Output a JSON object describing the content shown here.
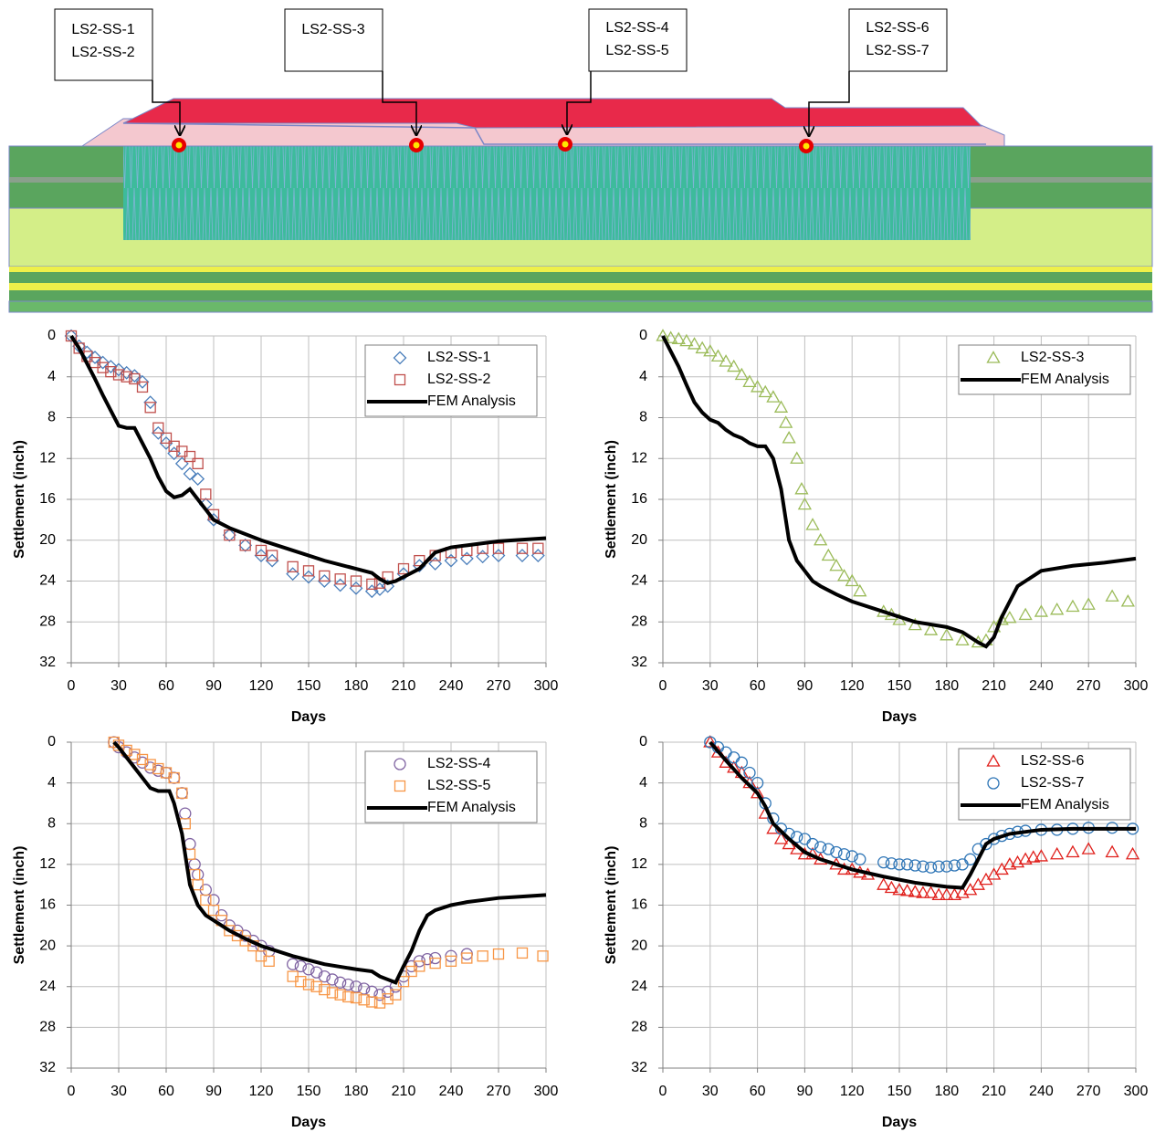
{
  "diagram": {
    "callouts": [
      {
        "lines": [
          "LS2-SS-1",
          "LS2-SS-2"
        ]
      },
      {
        "lines": [
          "LS2-SS-3"
        ]
      },
      {
        "lines": [
          "LS2-SS-4",
          "LS2-SS-5"
        ]
      },
      {
        "lines": [
          "LS2-SS-6",
          "LS2-SS-7"
        ]
      }
    ]
  },
  "chart_data": [
    {
      "type": "scatter",
      "x_label": "Days",
      "y_label": "Settlement (inch)",
      "xlim": [
        0,
        300
      ],
      "ylim": [
        0,
        32
      ],
      "y_inverted": true,
      "xticks": [
        0,
        30,
        60,
        90,
        120,
        150,
        180,
        210,
        240,
        270,
        300
      ],
      "yticks": [
        0,
        4,
        8,
        12,
        16,
        20,
        24,
        28,
        32
      ],
      "grid": true,
      "legend": "top-right",
      "series": [
        {
          "name": "LS2-SS-1",
          "color": "#4a7ebb",
          "mode": "markers",
          "marker": "diamond",
          "x": [
            0,
            5,
            10,
            15,
            20,
            25,
            30,
            35,
            40,
            45,
            50,
            55,
            60,
            65,
            70,
            75,
            80,
            85,
            90,
            100,
            110,
            120,
            127,
            140,
            150,
            160,
            170,
            180,
            190,
            195,
            200,
            210,
            220,
            230,
            240,
            250,
            260,
            270,
            285,
            295
          ],
          "values": [
            0,
            1,
            1.6,
            2.1,
            2.6,
            3,
            3.3,
            3.6,
            3.9,
            4.5,
            6.5,
            9.5,
            10.5,
            11.5,
            12.5,
            13.5,
            14,
            16.5,
            18,
            19.5,
            20.5,
            21.5,
            22,
            23.3,
            23.6,
            24,
            24.4,
            24.7,
            25,
            24.8,
            24.5,
            23.3,
            22.5,
            22.3,
            22,
            21.8,
            21.6,
            21.5,
            21.5,
            21.5
          ]
        },
        {
          "name": "LS2-SS-2",
          "color": "#c0504d",
          "mode": "markers",
          "marker": "square",
          "x": [
            0,
            5,
            10,
            15,
            20,
            25,
            30,
            35,
            40,
            45,
            50,
            55,
            60,
            65,
            70,
            75,
            80,
            85,
            90,
            100,
            110,
            120,
            127,
            140,
            150,
            160,
            170,
            180,
            190,
            195,
            200,
            210,
            220,
            230,
            240,
            250,
            260,
            270,
            285,
            295
          ],
          "values": [
            0,
            1.2,
            2,
            2.6,
            3.1,
            3.5,
            3.8,
            4,
            4.2,
            5,
            7,
            9,
            10,
            10.8,
            11.3,
            11.8,
            12.5,
            15.5,
            17.5,
            19.5,
            20.5,
            21,
            21.5,
            22.6,
            23,
            23.5,
            23.8,
            24,
            24.3,
            24.2,
            23.6,
            22.8,
            22,
            21.5,
            21.2,
            21,
            20.8,
            20.8,
            20.8,
            20.8
          ]
        },
        {
          "name": "FEM Analysis",
          "color": "#000000",
          "mode": "line",
          "x": [
            0,
            5,
            10,
            15,
            20,
            25,
            30,
            35,
            40,
            45,
            50,
            55,
            60,
            65,
            70,
            75,
            80,
            85,
            90,
            100,
            120,
            140,
            160,
            180,
            190,
            195,
            200,
            205,
            210,
            220,
            230,
            240,
            250,
            260,
            270,
            280,
            290,
            300
          ],
          "values": [
            0,
            1.2,
            2.7,
            4.2,
            5.8,
            7.3,
            8.8,
            9,
            9,
            10.5,
            12,
            13.8,
            15.2,
            15.8,
            15.6,
            15,
            16,
            17,
            18,
            18.8,
            20,
            21,
            22,
            22.8,
            23.2,
            23.8,
            24.2,
            24,
            23.6,
            22.8,
            21.2,
            20.7,
            20.5,
            20.3,
            20.1,
            20,
            19.9,
            19.8
          ]
        }
      ]
    },
    {
      "type": "scatter",
      "x_label": "Days",
      "y_label": "Settlement (inch)",
      "xlim": [
        0,
        300
      ],
      "ylim": [
        0,
        32
      ],
      "y_inverted": true,
      "xticks": [
        0,
        30,
        60,
        90,
        120,
        150,
        180,
        210,
        240,
        270,
        300
      ],
      "yticks": [
        0,
        4,
        8,
        12,
        16,
        20,
        24,
        28,
        32
      ],
      "grid": true,
      "legend": "top-right",
      "series": [
        {
          "name": "LS2-SS-3",
          "color": "#9bbb59",
          "mode": "markers",
          "marker": "triangle",
          "x": [
            0,
            5,
            10,
            15,
            20,
            25,
            30,
            35,
            40,
            45,
            50,
            55,
            60,
            65,
            70,
            75,
            78,
            80,
            85,
            88,
            90,
            95,
            100,
            105,
            110,
            115,
            120,
            125,
            140,
            145,
            150,
            160,
            170,
            180,
            190,
            200,
            205,
            210,
            215,
            220,
            230,
            240,
            250,
            260,
            270,
            285,
            295
          ],
          "values": [
            0,
            0.2,
            0.3,
            0.5,
            0.8,
            1.2,
            1.5,
            2,
            2.5,
            3,
            3.8,
            4.5,
            5,
            5.5,
            6,
            7,
            8.5,
            10,
            12,
            15,
            16.5,
            18.5,
            20,
            21.5,
            22.5,
            23.5,
            24,
            25,
            27,
            27.3,
            27.8,
            28.3,
            28.8,
            29.3,
            29.8,
            30,
            29.8,
            28.5,
            27.8,
            27.6,
            27.3,
            27,
            26.8,
            26.5,
            26.3,
            25.5,
            26
          ]
        },
        {
          "name": "FEM Analysis",
          "color": "#000000",
          "mode": "line",
          "x": [
            0,
            5,
            10,
            15,
            20,
            25,
            30,
            35,
            40,
            45,
            50,
            55,
            60,
            65,
            70,
            75,
            80,
            85,
            90,
            95,
            100,
            110,
            120,
            140,
            160,
            180,
            190,
            195,
            200,
            205,
            210,
            215,
            220,
            225,
            230,
            240,
            260,
            280,
            300
          ],
          "values": [
            0,
            1.5,
            3,
            4.8,
            6.5,
            7.5,
            8.2,
            8.5,
            9.2,
            9.7,
            10,
            10.5,
            10.8,
            10.8,
            12,
            15,
            20,
            22,
            23,
            24,
            24.5,
            25.3,
            26,
            27,
            28,
            28.5,
            29,
            29.5,
            30,
            30.4,
            29.5,
            27.5,
            26,
            24.5,
            24,
            23,
            22.5,
            22.2,
            21.8
          ]
        }
      ]
    },
    {
      "type": "scatter",
      "x_label": "Days",
      "y_label": "Settlement (inch)",
      "xlim": [
        0,
        300
      ],
      "ylim": [
        0,
        32
      ],
      "y_inverted": true,
      "xticks": [
        0,
        30,
        60,
        90,
        120,
        150,
        180,
        210,
        240,
        270,
        300
      ],
      "yticks": [
        0,
        4,
        8,
        12,
        16,
        20,
        24,
        28,
        32
      ],
      "grid": true,
      "legend": "top-right",
      "series": [
        {
          "name": "LS2-SS-4",
          "color": "#8064a2",
          "mode": "markers",
          "marker": "circle",
          "x": [
            27,
            30,
            35,
            40,
            45,
            50,
            55,
            60,
            65,
            70,
            72,
            75,
            78,
            80,
            85,
            90,
            95,
            100,
            105,
            110,
            115,
            120,
            125,
            140,
            145,
            150,
            155,
            160,
            165,
            170,
            175,
            180,
            185,
            190,
            195,
            200,
            205,
            210,
            215,
            220,
            225,
            230,
            240,
            250
          ],
          "values": [
            0,
            0.5,
            1,
            1.5,
            2,
            2.5,
            2.8,
            3,
            3.5,
            5,
            7,
            10,
            12,
            13,
            14.5,
            15.5,
            17,
            18,
            18.5,
            19,
            19.5,
            20,
            20.5,
            21.8,
            22,
            22.3,
            22.6,
            23,
            23.3,
            23.6,
            23.8,
            24,
            24.2,
            24.5,
            24.8,
            24.5,
            24,
            23,
            22,
            21.5,
            21.3,
            21.2,
            21,
            20.8
          ]
        },
        {
          "name": "LS2-SS-5",
          "color": "#f79646",
          "mode": "markers",
          "marker": "square",
          "x": [
            27,
            30,
            35,
            40,
            45,
            50,
            55,
            60,
            65,
            70,
            72,
            75,
            78,
            80,
            85,
            90,
            95,
            100,
            105,
            110,
            115,
            120,
            125,
            140,
            145,
            150,
            155,
            160,
            165,
            170,
            175,
            180,
            185,
            190,
            195,
            200,
            205,
            210,
            215,
            220,
            230,
            240,
            250,
            260,
            270,
            285,
            298
          ],
          "values": [
            0,
            0.3,
            0.8,
            1.2,
            1.7,
            2.2,
            2.6,
            3,
            3.5,
            5,
            8,
            11,
            13,
            14,
            15.5,
            16.5,
            17.5,
            18.5,
            19,
            19.5,
            20,
            21,
            21.5,
            23,
            23.5,
            23.8,
            24,
            24.3,
            24.6,
            24.8,
            25,
            25.1,
            25.3,
            25.5,
            25.6,
            25.2,
            24.8,
            23.5,
            22.5,
            22,
            21.7,
            21.5,
            21.2,
            21,
            20.8,
            20.7,
            21
          ]
        },
        {
          "name": "FEM Analysis",
          "color": "#000000",
          "mode": "line",
          "x": [
            27,
            30,
            35,
            40,
            45,
            50,
            55,
            60,
            62,
            65,
            70,
            75,
            80,
            85,
            90,
            100,
            110,
            120,
            140,
            160,
            180,
            190,
            195,
            200,
            205,
            210,
            215,
            220,
            225,
            230,
            240,
            250,
            260,
            270,
            280,
            300
          ],
          "values": [
            0,
            0.5,
            1.5,
            2.5,
            3.5,
            4.5,
            4.8,
            4.8,
            4.8,
            6,
            9,
            14,
            16,
            17,
            17.5,
            18.5,
            19.3,
            20,
            21,
            21.8,
            22.3,
            22.5,
            23,
            23.3,
            23.6,
            22,
            20.5,
            18.5,
            17,
            16.5,
            16,
            15.7,
            15.5,
            15.3,
            15.2,
            15
          ]
        }
      ]
    },
    {
      "type": "scatter",
      "x_label": "Days",
      "y_label": "Settlement (inch)",
      "xlim": [
        0,
        300
      ],
      "ylim": [
        0,
        32
      ],
      "y_inverted": true,
      "xticks": [
        0,
        30,
        60,
        90,
        120,
        150,
        180,
        210,
        240,
        270,
        300
      ],
      "yticks": [
        0,
        4,
        8,
        12,
        16,
        20,
        24,
        28,
        32
      ],
      "grid": true,
      "legend": "top-right",
      "series": [
        {
          "name": "LS2-SS-6",
          "color": "#e0201c",
          "mode": "markers",
          "marker": "triangle",
          "x": [
            30,
            35,
            40,
            45,
            50,
            55,
            60,
            65,
            70,
            75,
            80,
            85,
            90,
            95,
            100,
            110,
            115,
            120,
            125,
            130,
            140,
            145,
            150,
            155,
            160,
            165,
            170,
            175,
            180,
            185,
            190,
            195,
            200,
            205,
            210,
            215,
            220,
            225,
            230,
            235,
            240,
            250,
            260,
            270,
            285,
            298
          ],
          "values": [
            0,
            1,
            2,
            2.5,
            3,
            4,
            5,
            7,
            8.5,
            9.5,
            10,
            10.5,
            11,
            11,
            11.5,
            12,
            12.5,
            12.5,
            12.8,
            13,
            14,
            14.3,
            14.5,
            14.6,
            14.7,
            14.8,
            14.8,
            15,
            15,
            15,
            14.8,
            14.5,
            14,
            13.5,
            13,
            12.5,
            12,
            11.8,
            11.5,
            11.3,
            11.2,
            11,
            10.8,
            10.5,
            10.8,
            11
          ]
        },
        {
          "name": "LS2-SS-7",
          "color": "#2e75b6",
          "mode": "markers",
          "marker": "circle",
          "x": [
            30,
            35,
            40,
            45,
            50,
            55,
            60,
            65,
            70,
            75,
            80,
            85,
            90,
            95,
            100,
            105,
            110,
            115,
            120,
            125,
            140,
            145,
            150,
            155,
            160,
            165,
            170,
            175,
            180,
            185,
            190,
            195,
            200,
            205,
            210,
            215,
            220,
            225,
            230,
            240,
            250,
            260,
            270,
            285,
            298
          ],
          "values": [
            0,
            0.5,
            1,
            1.5,
            2,
            3,
            4,
            6,
            7.5,
            8.5,
            9,
            9.3,
            9.5,
            10,
            10.3,
            10.5,
            10.8,
            11,
            11.2,
            11.5,
            11.8,
            11.9,
            12,
            12,
            12.1,
            12.2,
            12.3,
            12.2,
            12.2,
            12.1,
            12,
            11.5,
            10.5,
            10,
            9.5,
            9.2,
            9,
            8.8,
            8.7,
            8.6,
            8.6,
            8.5,
            8.4,
            8.4,
            8.5
          ]
        },
        {
          "name": "FEM Analysis",
          "color": "#000000",
          "mode": "line",
          "x": [
            30,
            40,
            50,
            60,
            65,
            70,
            80,
            90,
            100,
            120,
            140,
            160,
            180,
            190,
            195,
            200,
            205,
            210,
            220,
            240,
            260,
            280,
            300
          ],
          "values": [
            0,
            1.8,
            3.5,
            5,
            6.3,
            8,
            9.5,
            10.8,
            11.5,
            12.5,
            13.2,
            13.8,
            14.2,
            14.3,
            13,
            11.5,
            10,
            9.5,
            9,
            8.6,
            8.5,
            8.5,
            8.5
          ]
        }
      ]
    }
  ]
}
